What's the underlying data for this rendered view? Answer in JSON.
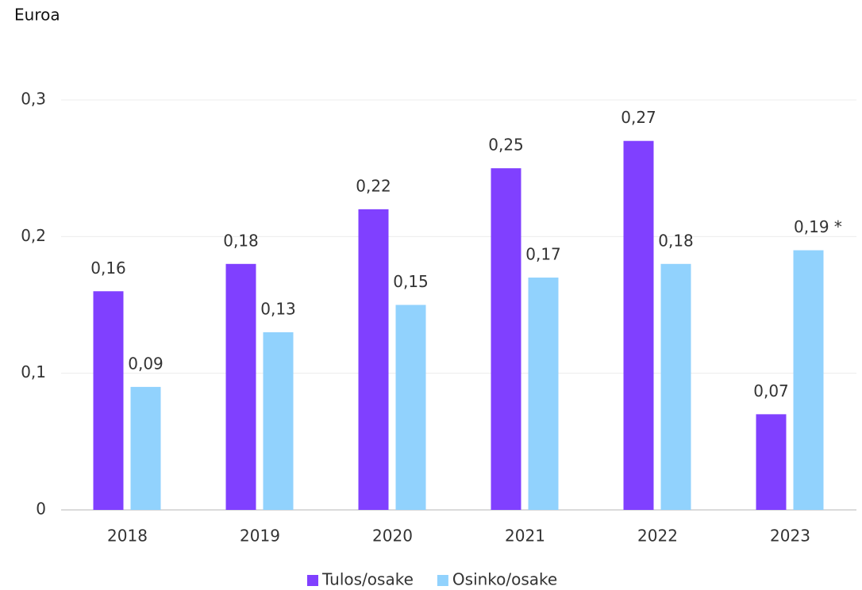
{
  "chart_data": {
    "type": "bar",
    "y_label": "Euroa",
    "categories": [
      "2018",
      "2019",
      "2020",
      "2021",
      "2022",
      "2023"
    ],
    "series": [
      {
        "name": "Tulos/osake",
        "color": "#8040ff",
        "values": [
          0.16,
          0.18,
          0.22,
          0.25,
          0.27,
          0.07
        ],
        "value_labels": [
          "0,16",
          "0,18",
          "0,22",
          "0,25",
          "0,27",
          "0,07"
        ]
      },
      {
        "name": "Osinko/osake",
        "color": "#91d2fd",
        "values": [
          0.09,
          0.13,
          0.15,
          0.17,
          0.18,
          0.19
        ],
        "value_labels": [
          "0,09",
          "0,13",
          "0,15",
          "0,17",
          "0,18",
          "0,19 *"
        ]
      }
    ],
    "ylim": [
      0,
      0.3
    ],
    "yticks": [
      0,
      {
        "value": 0.1,
        "label": "0,1"
      },
      {
        "value": 0.2,
        "label": "0,2"
      },
      {
        "value": 0.3,
        "label": "0,3"
      }
    ],
    "grid": true,
    "legend": "bottom"
  }
}
